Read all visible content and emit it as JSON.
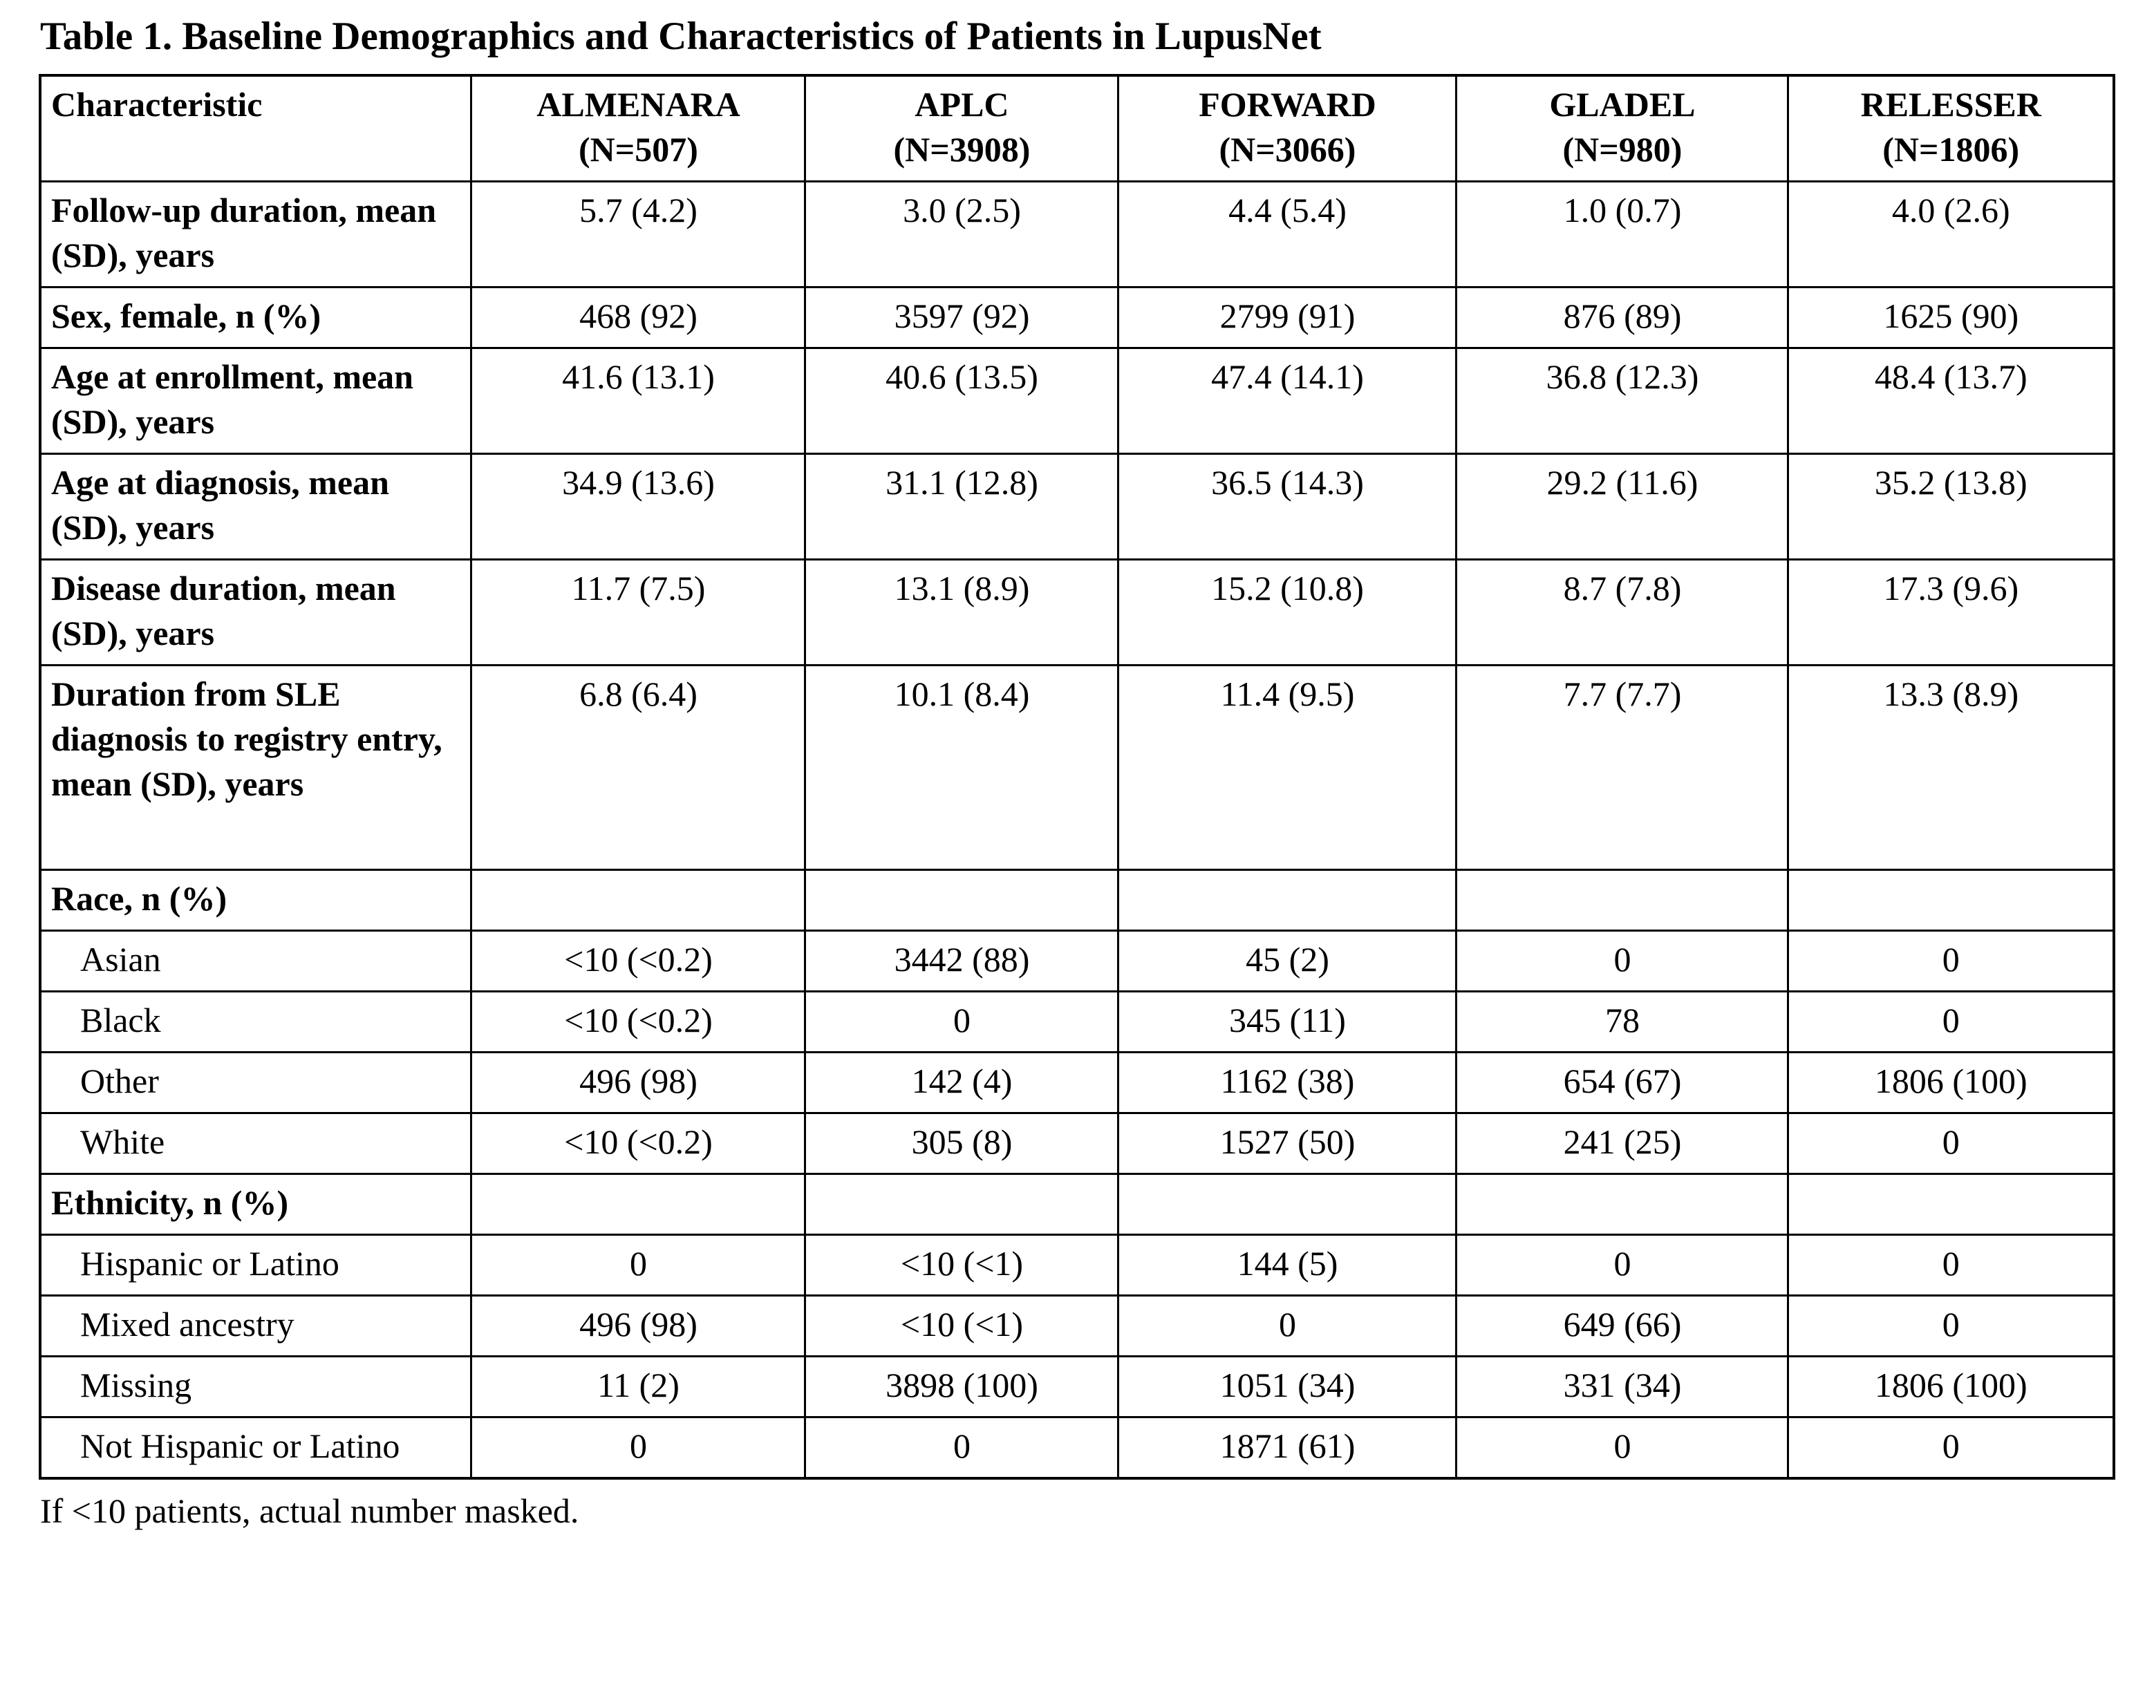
{
  "title": "Table 1. Baseline Demographics and Characteristics of Patients in LupusNet",
  "footnote": "If <10 patients, actual number masked.",
  "table": {
    "header": {
      "characteristic": "Characteristic",
      "cohorts": [
        {
          "name": "ALMENARA",
          "n": "(N=507)"
        },
        {
          "name": "APLC",
          "n": "(N=3908)"
        },
        {
          "name": "FORWARD",
          "n": "(N=3066)"
        },
        {
          "name": "GLADEL",
          "n": "(N=980)"
        },
        {
          "name": "RELESSER",
          "n": "(N=1806)"
        }
      ]
    },
    "rows": [
      {
        "label": "Follow-up duration, mean (SD), years",
        "style": "main",
        "values": [
          "5.7 (4.2)",
          "3.0 (2.5)",
          "4.4 (5.4)",
          "1.0 (0.7)",
          "4.0 (2.6)"
        ]
      },
      {
        "label": "Sex, female, n (%)",
        "style": "main",
        "values": [
          "468 (92)",
          "3597 (92)",
          "2799 (91)",
          "876 (89)",
          "1625 (90)"
        ]
      },
      {
        "label": "Age at enrollment, mean (SD), years",
        "style": "main",
        "values": [
          "41.6 (13.1)",
          "40.6 (13.5)",
          "47.4 (14.1)",
          "36.8 (12.3)",
          "48.4 (13.7)"
        ]
      },
      {
        "label": "Age at diagnosis, mean (SD), years",
        "style": "main",
        "values": [
          "34.9 (13.6)",
          "31.1 (12.8)",
          "36.5 (14.3)",
          "29.2 (11.6)",
          "35.2 (13.8)"
        ]
      },
      {
        "label": "Disease duration, mean (SD), years",
        "style": "main",
        "values": [
          "11.7 (7.5)",
          "13.1 (8.9)",
          "15.2 (10.8)",
          "8.7 (7.8)",
          "17.3 (9.6)"
        ]
      },
      {
        "label": "Duration from SLE diagnosis to registry entry, mean (SD), years",
        "style": "main",
        "big": true,
        "values": [
          "6.8 (6.4)",
          "10.1 (8.4)",
          "11.4 (9.5)",
          "7.7 (7.7)",
          "13.3 (8.9)"
        ]
      },
      {
        "label": "Race, n (%)",
        "style": "section",
        "values": [
          "",
          "",
          "",
          "",
          ""
        ]
      },
      {
        "label": "Asian",
        "style": "sub",
        "values": [
          "<10 (<0.2)",
          "3442 (88)",
          "45 (2)",
          "0",
          "0"
        ]
      },
      {
        "label": "Black",
        "style": "sub",
        "values": [
          "<10 (<0.2)",
          "0",
          "345 (11)",
          "78",
          "0"
        ]
      },
      {
        "label": "Other",
        "style": "sub",
        "values": [
          "496 (98)",
          "142 (4)",
          "1162 (38)",
          "654 (67)",
          "1806 (100)"
        ]
      },
      {
        "label": "White",
        "style": "sub",
        "values": [
          "<10 (<0.2)",
          "305 (8)",
          "1527 (50)",
          "241 (25)",
          "0"
        ]
      },
      {
        "label": "Ethnicity, n (%)",
        "style": "section",
        "values": [
          "",
          "",
          "",
          "",
          ""
        ]
      },
      {
        "label": "Hispanic or Latino",
        "style": "sub",
        "values": [
          "0",
          "<10 (<1)",
          "144 (5)",
          "0",
          "0"
        ]
      },
      {
        "label": "Mixed ancestry",
        "style": "sub",
        "values": [
          "496 (98)",
          "<10 (<1)",
          "0",
          "649 (66)",
          "0"
        ]
      },
      {
        "label": "Missing",
        "style": "sub",
        "values": [
          "11 (2)",
          "3898 (100)",
          "1051 (34)",
          "331 (34)",
          "1806 (100)"
        ]
      },
      {
        "label": "Not Hispanic or Latino",
        "style": "sub",
        "valign": "middle",
        "values": [
          "0",
          "0",
          "1871 (61)",
          "0",
          "0"
        ]
      }
    ]
  }
}
